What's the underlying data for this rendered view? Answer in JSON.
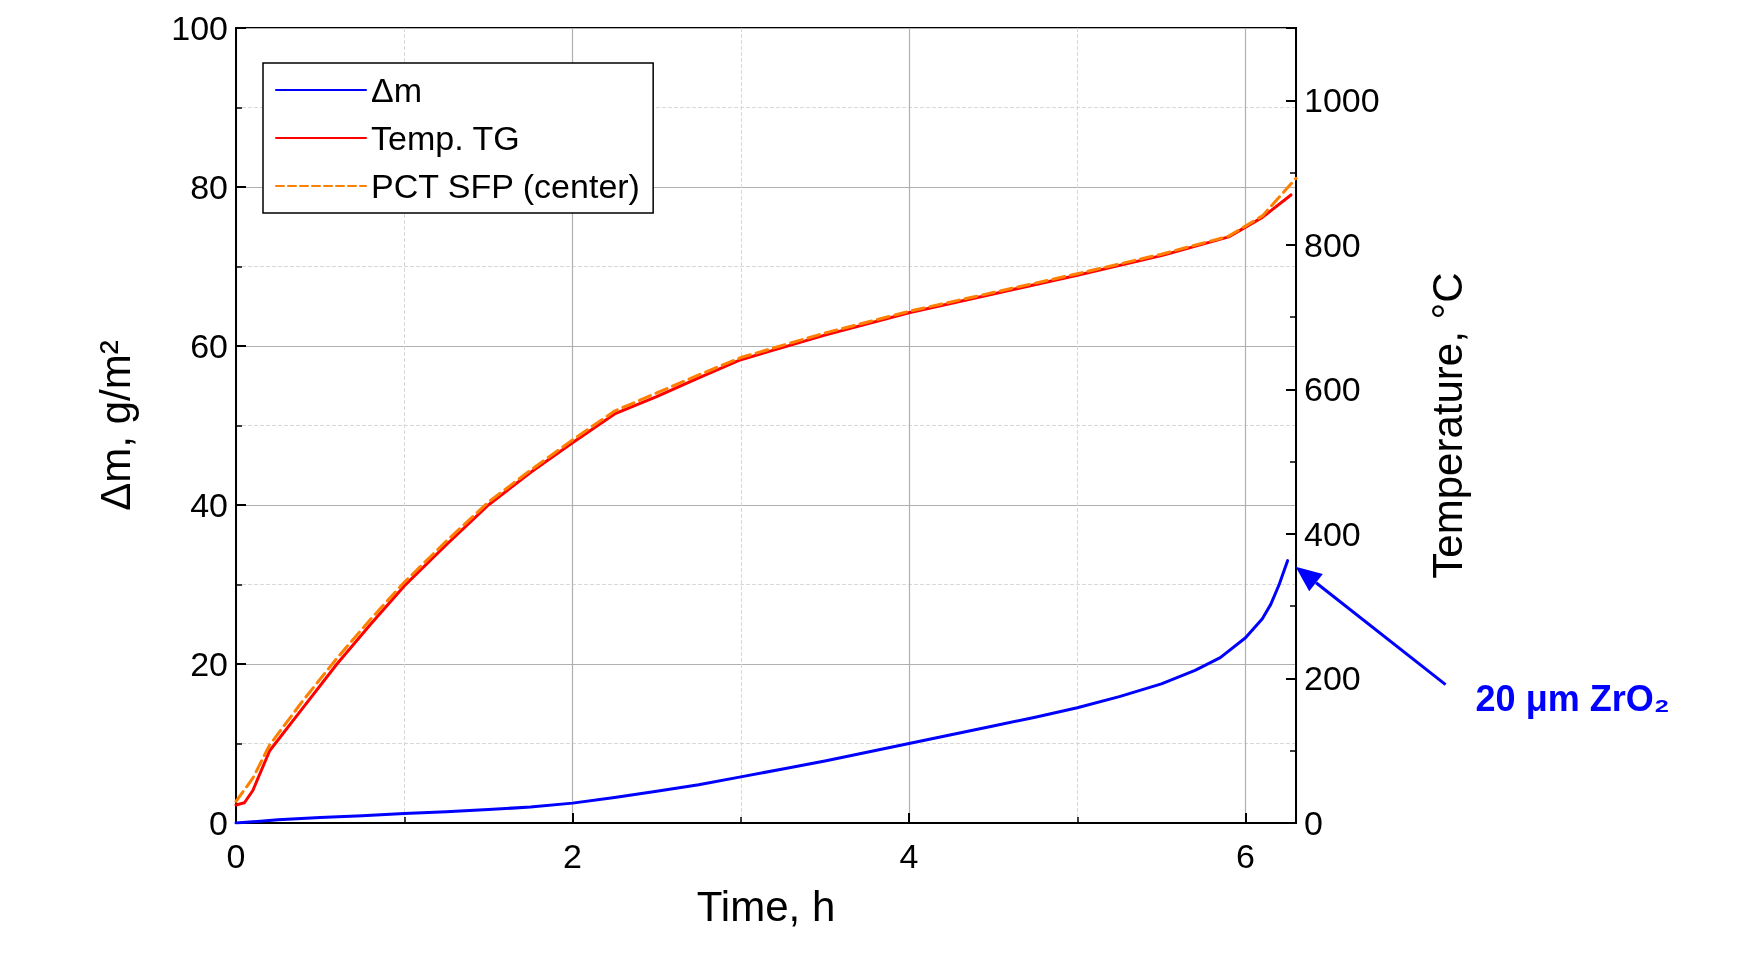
{
  "chart_data": {
    "type": "line",
    "xlabel": "Time, h",
    "ylabel": "Δm, g/m²",
    "y2label": "Temperature, °C",
    "xlim": [
      0,
      6.3
    ],
    "xticks": [
      0,
      2,
      4,
      6
    ],
    "ylim": [
      0,
      100
    ],
    "yticks": [
      0,
      20,
      40,
      60,
      80,
      100
    ],
    "y2lim": [
      0,
      1100
    ],
    "y2ticks": [
      0,
      200,
      400,
      600,
      800,
      1000
    ],
    "grid": true,
    "legend": "top left",
    "line_style": "solid",
    "series": [
      {
        "name": "Δm",
        "color": "#0000ff",
        "x": [
          0,
          0.25,
          0.5,
          0.75,
          1,
          1.25,
          1.5,
          1.75,
          2,
          2.25,
          2.5,
          2.75,
          3,
          3.25,
          3.5,
          3.75,
          4,
          4.25,
          4.5,
          4.75,
          5,
          5.25,
          5.5,
          5.7,
          5.85,
          6,
          6.1,
          6.15,
          6.2,
          6.25
        ],
        "values": [
          0,
          0.4,
          0.7,
          0.9,
          1.2,
          1.4,
          1.7,
          2,
          2.5,
          3.2,
          4,
          4.8,
          5.8,
          6.8,
          7.8,
          8.9,
          10,
          11.1,
          12.2,
          13.3,
          14.5,
          15.9,
          17.5,
          19.2,
          20.8,
          23.3,
          25.7,
          27.5,
          30,
          33
        ]
      },
      {
        "name": "Temp. TG",
        "color": "#ff0000",
        "axis": "y2",
        "x": [
          0,
          0.05,
          0.1,
          0.2,
          0.4,
          0.6,
          0.8,
          1,
          1.25,
          1.5,
          1.75,
          2,
          2.25,
          2.5,
          2.75,
          3,
          3.5,
          4,
          4.5,
          5,
          5.5,
          5.9,
          6.1,
          6.27
        ],
        "values": [
          25,
          28,
          45,
          100,
          160,
          220,
          275,
          328,
          385,
          440,
          485,
          526,
          566,
          590,
          616,
          641,
          675,
          706,
          732,
          758,
          785,
          811,
          838,
          869
        ]
      },
      {
        "name": "PCT SFP (center)",
        "color": "#ff8000",
        "axis": "y2",
        "line_style": "dashed",
        "x": [
          0,
          0.1,
          0.2,
          0.4,
          0.6,
          0.8,
          1,
          1.25,
          1.5,
          1.75,
          2,
          2.25,
          2.5,
          2.75,
          3,
          3.5,
          4,
          4.5,
          5,
          5.5,
          5.9,
          6.1,
          6.3
        ],
        "values": [
          30,
          62,
          108,
          170,
          228,
          282,
          333,
          390,
          444,
          488,
          530,
          570,
          595,
          620,
          644,
          678,
          708,
          734,
          760,
          787,
          812,
          840,
          892
        ]
      }
    ],
    "annotations": [
      "20 μm ZrO₂"
    ]
  }
}
